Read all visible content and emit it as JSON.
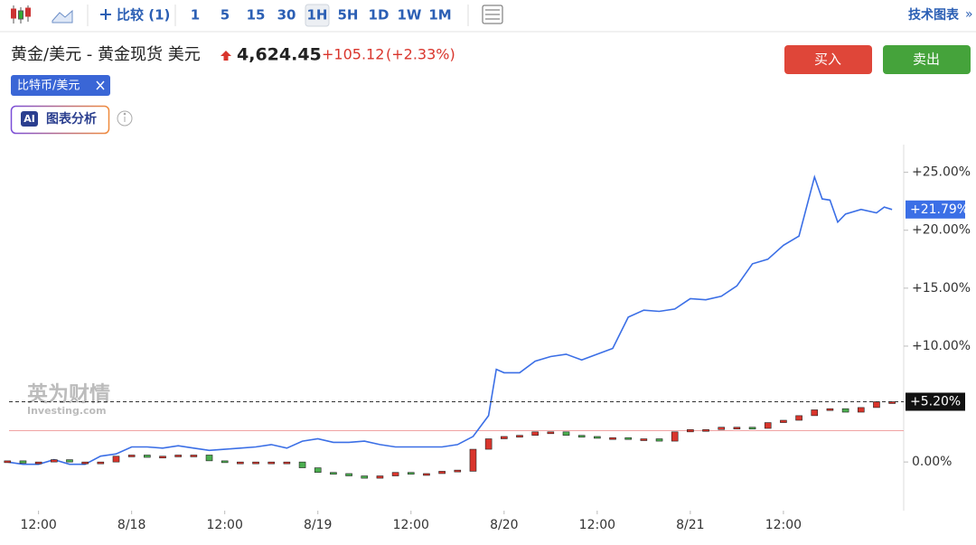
{
  "toolbar": {
    "compare": "比较 (1)",
    "intervals": [
      "1",
      "5",
      "15",
      "30",
      "1H",
      "5H",
      "1D",
      "1W",
      "1M"
    ],
    "selected": 4,
    "tech_chart": "技术图表",
    "more": "»"
  },
  "header": {
    "title": "黄金/美元 - 黄金现货 美元",
    "price": "4,624.45",
    "change": "+105.12",
    "change_pct": "(+2.33%)",
    "buy": "买入",
    "sell": "卖出",
    "compare_tag": "比特币/美元",
    "ai_badge": "AI",
    "ai_button": "图表分析"
  },
  "watermark": {
    "brand": "英为财情",
    "site": "Investing.com"
  },
  "chart_data": {
    "type": "candlestick",
    "xlim": [
      8.2,
      123.5
    ],
    "xticks": [
      {
        "value": 12,
        "label": "12:00"
      },
      {
        "value": 24,
        "label": "8/18"
      },
      {
        "value": 36,
        "label": "12:00"
      },
      {
        "value": 48,
        "label": "8/19"
      },
      {
        "value": 60,
        "label": "12:00"
      },
      {
        "value": 72,
        "label": "8/20"
      },
      {
        "value": 84,
        "label": "12:00"
      },
      {
        "value": 96,
        "label": "8/21"
      },
      {
        "value": 108,
        "label": "12:00"
      }
    ],
    "ylim": [
      -4.2,
      27
    ],
    "yticks": [
      {
        "value": 0,
        "label": "0.00%"
      },
      {
        "value": 10,
        "label": "+10.00%"
      },
      {
        "value": 15,
        "label": "+15.00%"
      },
      {
        "value": 20,
        "label": "+20.00%"
      },
      {
        "value": 25,
        "label": "+25.00%"
      }
    ],
    "ref_line": 2.7,
    "series": [
      {
        "type": "line",
        "color": "#3b6fe6",
        "last_value": 21.79,
        "last_label": "+21.79%",
        "x": [
          8,
          10,
          12,
          14,
          16,
          18,
          20,
          22,
          24,
          26,
          28,
          30,
          32,
          34,
          36,
          38,
          40,
          42,
          44,
          46,
          48,
          50,
          52,
          54,
          56,
          58,
          60,
          62,
          64,
          66,
          68,
          70,
          71,
          72,
          74,
          76,
          78,
          80,
          82,
          84,
          86,
          88,
          90,
          92,
          94,
          96,
          98,
          100,
          102,
          104,
          106,
          108,
          110,
          112,
          113,
          114,
          115,
          116,
          118,
          120,
          121,
          122
        ],
        "values": [
          0.0,
          -0.2,
          -0.2,
          0.2,
          -0.2,
          -0.2,
          0.5,
          0.7,
          1.3,
          1.3,
          1.2,
          1.4,
          1.2,
          1.0,
          1.1,
          1.2,
          1.3,
          1.5,
          1.2,
          1.8,
          2.0,
          1.7,
          1.7,
          1.8,
          1.5,
          1.3,
          1.3,
          1.3,
          1.3,
          1.5,
          2.2,
          4.0,
          8.0,
          7.7,
          7.7,
          8.7,
          9.1,
          9.3,
          8.8,
          9.3,
          9.8,
          12.5,
          13.1,
          13.0,
          13.2,
          14.1,
          14.0,
          14.3,
          15.2,
          17.1,
          17.5,
          18.7,
          19.5,
          24.6,
          22.7,
          22.6,
          20.7,
          21.4,
          21.8,
          21.5,
          22.0,
          21.79
        ]
      },
      {
        "type": "candlestick",
        "up_color": "#d9352c",
        "down_color": "#4caf50",
        "last_value": 5.2,
        "last_label": "+5.20%",
        "x": [
          8,
          10,
          12,
          14,
          16,
          18,
          20,
          22,
          24,
          26,
          28,
          30,
          32,
          34,
          36,
          38,
          40,
          42,
          44,
          46,
          48,
          50,
          52,
          54,
          56,
          58,
          60,
          62,
          64,
          66,
          68,
          70,
          72,
          74,
          76,
          78,
          80,
          82,
          84,
          86,
          88,
          90,
          92,
          94,
          96,
          98,
          100,
          102,
          104,
          106,
          108,
          110,
          112,
          114,
          116,
          118,
          120,
          122
        ],
        "open": [
          0.0,
          0.1,
          -0.1,
          0.0,
          0.2,
          0.0,
          0.0,
          0.0,
          0.5,
          0.6,
          0.4,
          0.5,
          0.6,
          0.6,
          0.1,
          0.0,
          0.0,
          0.0,
          0.0,
          0.0,
          -0.5,
          -0.9,
          -1.0,
          -1.2,
          -1.4,
          -1.2,
          -0.9,
          -1.0,
          -1.0,
          -0.8,
          -0.8,
          1.1,
          2.0,
          2.2,
          2.3,
          2.6,
          2.6,
          2.3,
          2.2,
          2.1,
          2.1,
          2.0,
          2.0,
          1.8,
          2.6,
          2.8,
          2.8,
          3.0,
          3.0,
          2.9,
          3.4,
          3.6,
          4.0,
          4.5,
          4.6,
          4.3,
          4.7,
          5.2
        ],
        "close": [
          0.1,
          -0.1,
          0.0,
          0.2,
          0.0,
          0.0,
          0.0,
          0.5,
          0.6,
          0.4,
          0.5,
          0.6,
          0.6,
          0.1,
          0.0,
          0.0,
          0.0,
          0.0,
          0.0,
          -0.5,
          -0.9,
          -1.0,
          -1.2,
          -1.4,
          -1.2,
          -0.9,
          -1.0,
          -1.0,
          -0.8,
          -0.7,
          1.1,
          2.0,
          2.2,
          2.3,
          2.6,
          2.6,
          2.3,
          2.2,
          2.1,
          2.1,
          2.0,
          2.0,
          1.8,
          2.6,
          2.8,
          2.8,
          3.0,
          3.0,
          2.9,
          3.4,
          3.6,
          4.0,
          4.5,
          4.6,
          4.3,
          4.7,
          5.2,
          5.2
        ]
      }
    ]
  }
}
